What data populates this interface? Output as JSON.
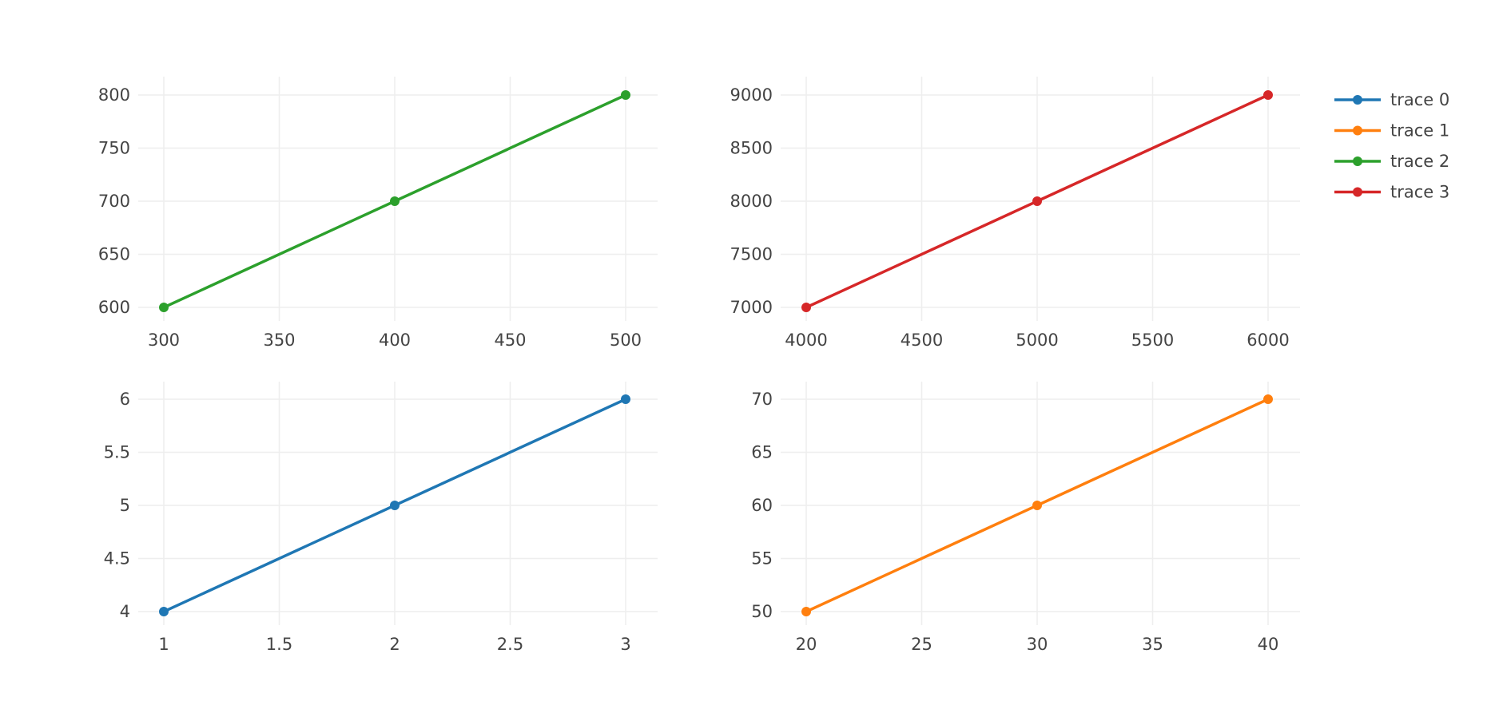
{
  "chart_data": {
    "type": "line",
    "grid": true,
    "legend_position": "top-right",
    "legend": [
      {
        "name": "trace 0",
        "color": "#1f77b4"
      },
      {
        "name": "trace 1",
        "color": "#ff7f0e"
      },
      {
        "name": "trace 2",
        "color": "#2ca02c"
      },
      {
        "name": "trace 3",
        "color": "#d62728"
      }
    ],
    "subplots": [
      {
        "id": "top-left",
        "xlim": [
          300,
          500
        ],
        "ylim": [
          600,
          800
        ],
        "xticks": [
          300,
          350,
          400,
          450,
          500
        ],
        "yticks": [
          600,
          650,
          700,
          750,
          800
        ],
        "xtick_labels": [
          "300",
          "350",
          "400",
          "450",
          "500"
        ],
        "ytick_labels": [
          "600",
          "650",
          "700",
          "750",
          "800"
        ],
        "series": [
          {
            "name": "trace 2",
            "color": "#2ca02c",
            "x": [
              300,
              400,
              500
            ],
            "y": [
              600,
              700,
              800
            ]
          }
        ]
      },
      {
        "id": "top-right",
        "xlim": [
          4000,
          6000
        ],
        "ylim": [
          7000,
          9000
        ],
        "xticks": [
          4000,
          4500,
          5000,
          5500,
          6000
        ],
        "yticks": [
          7000,
          7500,
          8000,
          8500,
          9000
        ],
        "xtick_labels": [
          "4000",
          "4500",
          "5000",
          "5500",
          "6000"
        ],
        "ytick_labels": [
          "7000",
          "7500",
          "8000",
          "8500",
          "9000"
        ],
        "series": [
          {
            "name": "trace 3",
            "color": "#d62728",
            "x": [
              4000,
              5000,
              6000
            ],
            "y": [
              7000,
              8000,
              9000
            ]
          }
        ]
      },
      {
        "id": "bottom-left",
        "xlim": [
          1,
          3
        ],
        "ylim": [
          4,
          6
        ],
        "xticks": [
          1,
          1.5,
          2,
          2.5,
          3
        ],
        "yticks": [
          4,
          4.5,
          5,
          5.5,
          6
        ],
        "xtick_labels": [
          "1",
          "1.5",
          "2",
          "2.5",
          "3"
        ],
        "ytick_labels": [
          "4",
          "4.5",
          "5",
          "5.5",
          "6"
        ],
        "series": [
          {
            "name": "trace 0",
            "color": "#1f77b4",
            "x": [
              1,
              2,
              3
            ],
            "y": [
              4,
              5,
              6
            ]
          }
        ]
      },
      {
        "id": "bottom-right",
        "xlim": [
          20,
          40
        ],
        "ylim": [
          50,
          70
        ],
        "xticks": [
          20,
          25,
          30,
          35,
          40
        ],
        "yticks": [
          50,
          55,
          60,
          65,
          70
        ],
        "xtick_labels": [
          "20",
          "25",
          "30",
          "35",
          "40"
        ],
        "ytick_labels": [
          "50",
          "55",
          "60",
          "65",
          "70"
        ],
        "series": [
          {
            "name": "trace 1",
            "color": "#ff7f0e",
            "x": [
              20,
              30,
              40
            ],
            "y": [
              50,
              60,
              70
            ]
          }
        ]
      }
    ]
  }
}
